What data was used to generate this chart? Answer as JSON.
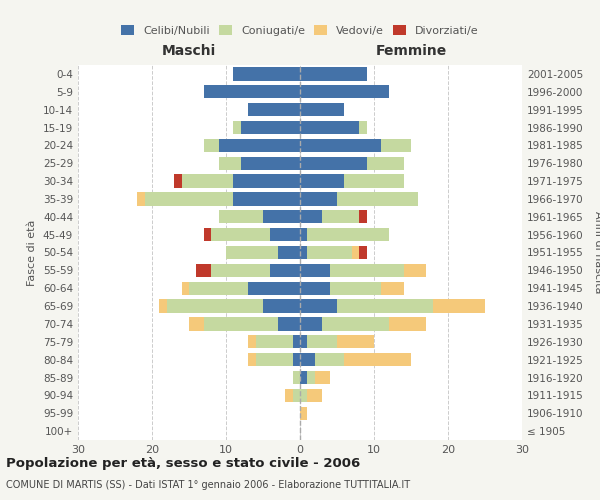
{
  "age_groups": [
    "100+",
    "95-99",
    "90-94",
    "85-89",
    "80-84",
    "75-79",
    "70-74",
    "65-69",
    "60-64",
    "55-59",
    "50-54",
    "45-49",
    "40-44",
    "35-39",
    "30-34",
    "25-29",
    "20-24",
    "15-19",
    "10-14",
    "5-9",
    "0-4"
  ],
  "birth_years": [
    "≤ 1905",
    "1906-1910",
    "1911-1915",
    "1916-1920",
    "1921-1925",
    "1926-1930",
    "1931-1935",
    "1936-1940",
    "1941-1945",
    "1946-1950",
    "1951-1955",
    "1956-1960",
    "1961-1965",
    "1966-1970",
    "1971-1975",
    "1976-1980",
    "1981-1985",
    "1986-1990",
    "1991-1995",
    "1996-2000",
    "2001-2005"
  ],
  "maschi": {
    "celibi": [
      0,
      0,
      0,
      0,
      1,
      1,
      3,
      5,
      7,
      4,
      3,
      4,
      5,
      9,
      9,
      8,
      11,
      8,
      7,
      13,
      9
    ],
    "coniugati": [
      0,
      0,
      1,
      1,
      5,
      5,
      10,
      13,
      8,
      8,
      7,
      8,
      6,
      12,
      7,
      3,
      2,
      1,
      0,
      0,
      0
    ],
    "vedovi": [
      0,
      0,
      1,
      0,
      1,
      1,
      2,
      1,
      1,
      0,
      0,
      0,
      0,
      1,
      0,
      0,
      0,
      0,
      0,
      0,
      0
    ],
    "divorziati": [
      0,
      0,
      0,
      0,
      0,
      0,
      0,
      0,
      0,
      2,
      0,
      1,
      0,
      0,
      1,
      0,
      0,
      0,
      0,
      0,
      0
    ]
  },
  "femmine": {
    "nubili": [
      0,
      0,
      0,
      1,
      2,
      1,
      3,
      5,
      4,
      4,
      1,
      1,
      3,
      5,
      6,
      9,
      11,
      8,
      6,
      12,
      9
    ],
    "coniugate": [
      0,
      0,
      1,
      1,
      4,
      4,
      9,
      13,
      7,
      10,
      6,
      11,
      5,
      11,
      8,
      5,
      4,
      1,
      0,
      0,
      0
    ],
    "vedove": [
      0,
      1,
      2,
      2,
      9,
      5,
      5,
      7,
      3,
      3,
      1,
      0,
      0,
      0,
      0,
      0,
      0,
      0,
      0,
      0,
      0
    ],
    "divorziate": [
      0,
      0,
      0,
      0,
      0,
      0,
      0,
      0,
      0,
      0,
      1,
      0,
      1,
      0,
      0,
      0,
      0,
      0,
      0,
      0,
      0
    ]
  },
  "colors": {
    "celibi_nubili": "#4472a8",
    "coniugati": "#c5d9a0",
    "vedovi": "#f5c97a",
    "divorziati": "#c0392b"
  },
  "title": "Popolazione per età, sesso e stato civile - 2006",
  "subtitle": "COMUNE DI MARTIS (SS) - Dati ISTAT 1° gennaio 2006 - Elaborazione TUTTITALIA.IT",
  "xlabel_left": "Maschi",
  "xlabel_right": "Femmine",
  "ylabel_left": "Fasce di età",
  "ylabel_right": "Anni di nascita",
  "xlim": 30,
  "bg_color": "#f5f5f0",
  "plot_bg": "#ffffff",
  "legend_labels": [
    "Celibi/Nubili",
    "Coniugati/e",
    "Vedovi/e",
    "Divorziati/e"
  ]
}
